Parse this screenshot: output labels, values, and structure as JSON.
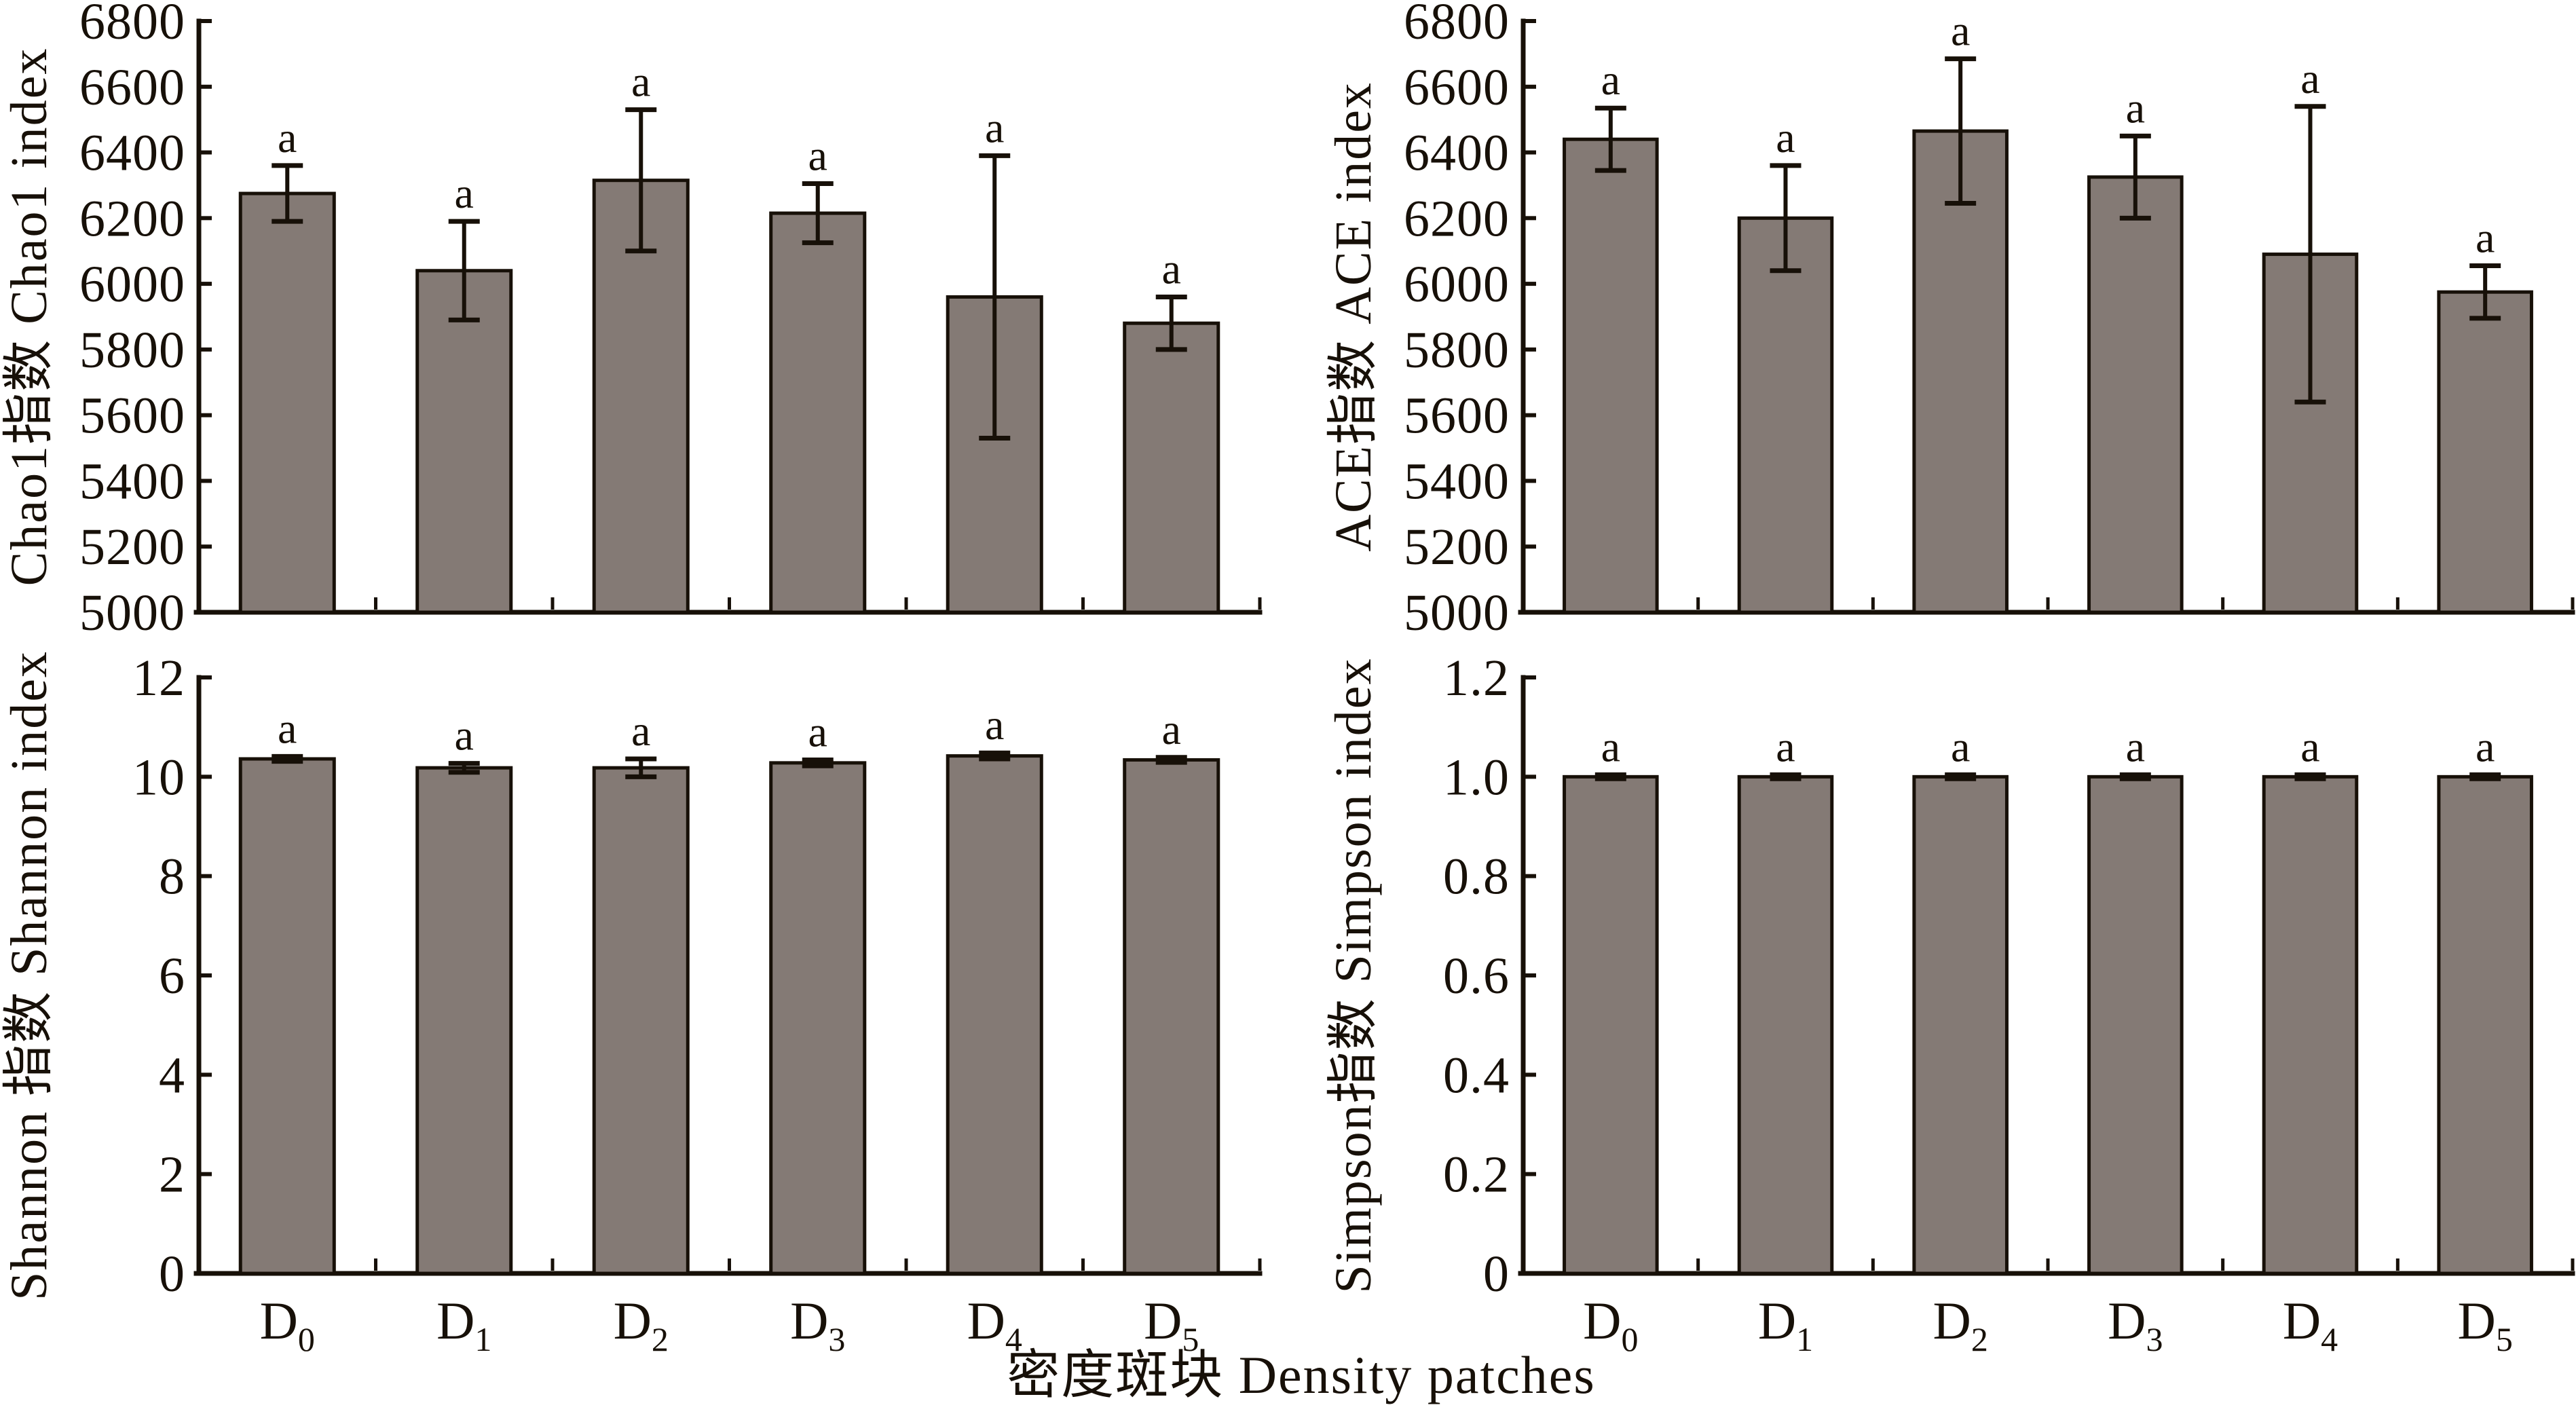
{
  "figure": {
    "background": "#ffffff",
    "bar_fill": "#847a75",
    "line_color": "#171008",
    "significance_letter": "a",
    "x_axis_label": "密度斑块 Density patches",
    "categories": [
      {
        "base": "D",
        "sub": "0"
      },
      {
        "base": "D",
        "sub": "1"
      },
      {
        "base": "D",
        "sub": "2"
      },
      {
        "base": "D",
        "sub": "3"
      },
      {
        "base": "D",
        "sub": "4"
      },
      {
        "base": "D",
        "sub": "5"
      }
    ]
  },
  "chart_data": [
    {
      "id": "chao1",
      "type": "bar",
      "position": "top-left",
      "title": "",
      "xlabel": "",
      "ylabel": "Chao1指数 Chao1 index",
      "ylim": [
        5000,
        6800
      ],
      "ytick_step": 200,
      "ytick_labels": [
        "5000",
        "5200",
        "5400",
        "5600",
        "5800",
        "6000",
        "6200",
        "6400",
        "6600",
        "6800"
      ],
      "categories": [
        "D0",
        "D1",
        "D2",
        "D3",
        "D4",
        "D5"
      ],
      "values": [
        6275,
        6040,
        6315,
        6215,
        5960,
        5880
      ],
      "errors": [
        85,
        150,
        215,
        90,
        430,
        80
      ],
      "annotations": [
        "a",
        "a",
        "a",
        "a",
        "a",
        "a"
      ],
      "grid": "off",
      "legend": "none",
      "show_x_labels": false
    },
    {
      "id": "ace",
      "type": "bar",
      "position": "top-right",
      "title": "",
      "xlabel": "",
      "ylabel": "ACE指数 ACE index",
      "ylim": [
        5000,
        6800
      ],
      "ytick_step": 200,
      "ytick_labels": [
        "5000",
        "5200",
        "5400",
        "5600",
        "5800",
        "6000",
        "6200",
        "6400",
        "6600",
        "6800"
      ],
      "categories": [
        "D0",
        "D1",
        "D2",
        "D3",
        "D4",
        "D5"
      ],
      "values": [
        6440,
        6200,
        6465,
        6325,
        6090,
        5975
      ],
      "errors": [
        95,
        160,
        220,
        125,
        450,
        80
      ],
      "annotations": [
        "a",
        "a",
        "a",
        "a",
        "a",
        "a"
      ],
      "grid": "off",
      "legend": "none",
      "show_x_labels": false
    },
    {
      "id": "shannon",
      "type": "bar",
      "position": "bottom-left",
      "title": "",
      "xlabel": "",
      "ylabel": "Shannon 指数 Shannon index",
      "ylim": [
        0,
        12
      ],
      "ytick_step": 2,
      "ytick_labels": [
        "0",
        "2",
        "4",
        "6",
        "8",
        "10",
        "12"
      ],
      "categories": [
        "D0",
        "D1",
        "D2",
        "D3",
        "D4",
        "D5"
      ],
      "values": [
        10.36,
        10.18,
        10.18,
        10.28,
        10.42,
        10.34
      ],
      "errors": [
        0.05,
        0.09,
        0.18,
        0.06,
        0.06,
        0.05
      ],
      "annotations": [
        "a",
        "a",
        "a",
        "a",
        "a",
        "a"
      ],
      "grid": "off",
      "legend": "none",
      "show_x_labels": true
    },
    {
      "id": "simpson",
      "type": "bar",
      "position": "bottom-right",
      "title": "",
      "xlabel": "",
      "ylabel": "Simpson指数 Simpson index",
      "ylim": [
        0,
        1.2
      ],
      "ytick_step": 0.2,
      "ytick_labels": [
        "0",
        "0.2",
        "0.4",
        "0.6",
        "0.8",
        "1.0",
        "1.2"
      ],
      "categories": [
        "D0",
        "D1",
        "D2",
        "D3",
        "D4",
        "D5"
      ],
      "values": [
        1.0,
        1.0,
        1.0,
        1.0,
        1.0,
        1.0
      ],
      "errors": [
        0.004,
        0.004,
        0.004,
        0.004,
        0.004,
        0.004
      ],
      "annotations": [
        "a",
        "a",
        "a",
        "a",
        "a",
        "a"
      ],
      "grid": "off",
      "legend": "none",
      "show_x_labels": true
    }
  ]
}
